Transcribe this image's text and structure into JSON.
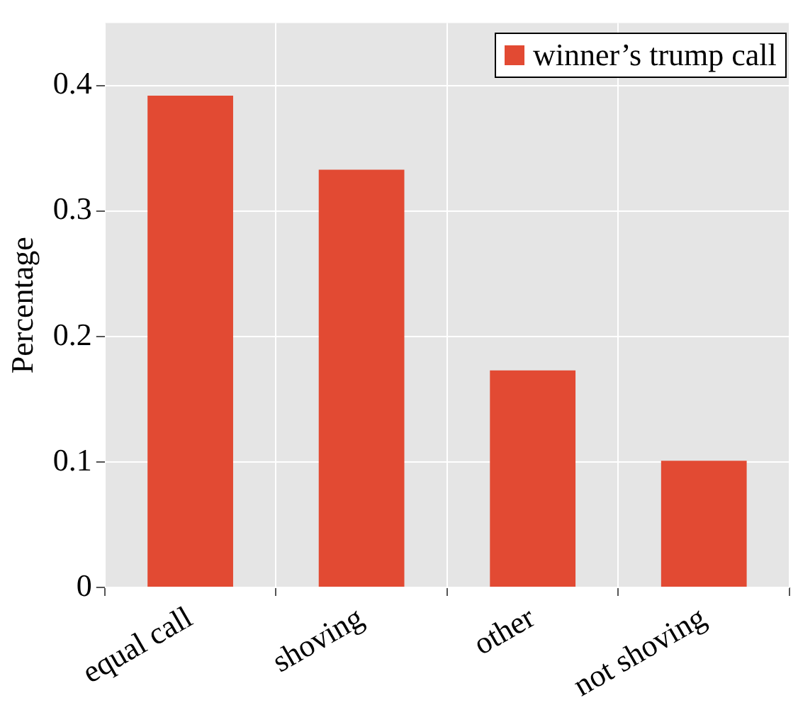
{
  "chart_data": {
    "type": "bar",
    "ylabel": "Percentage",
    "categories": [
      "equal call",
      "shoving",
      "other",
      "not shoving"
    ],
    "series": [
      {
        "name": "winner’s trump call",
        "color": "#e24a33",
        "values": [
          0.392,
          0.333,
          0.173,
          0.101
        ]
      }
    ],
    "ylim": [
      0,
      0.45
    ],
    "yticks": [
      0,
      0.1,
      0.2,
      0.3,
      0.4
    ],
    "grid": true,
    "legend": "top right"
  }
}
